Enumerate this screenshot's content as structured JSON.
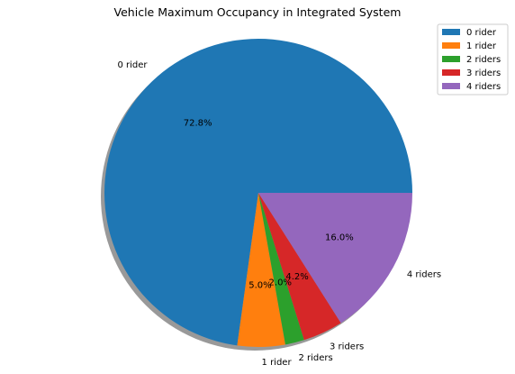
{
  "chart_data": {
    "type": "pie",
    "title": "Vehicle Maximum Occupancy in Integrated System",
    "categories": [
      "0 rider",
      "1 rider",
      "2 riders",
      "3 riders",
      "4 riders"
    ],
    "values": [
      72.8,
      5.0,
      2.0,
      4.2,
      16.0
    ],
    "value_labels": [
      "72.8%",
      "5.0%",
      "2.0%",
      "4.2%",
      "16.0%"
    ],
    "colors": [
      "#1f77b4",
      "#ff7f0e",
      "#2ca02c",
      "#d62728",
      "#9467bd"
    ],
    "start_angle_deg": 0,
    "direction": "counterclockwise",
    "shadow": true,
    "legend": {
      "position": "top-right",
      "entries": [
        "0 rider",
        "1 rider",
        "2 riders",
        "3 riders",
        "4 riders"
      ]
    }
  }
}
